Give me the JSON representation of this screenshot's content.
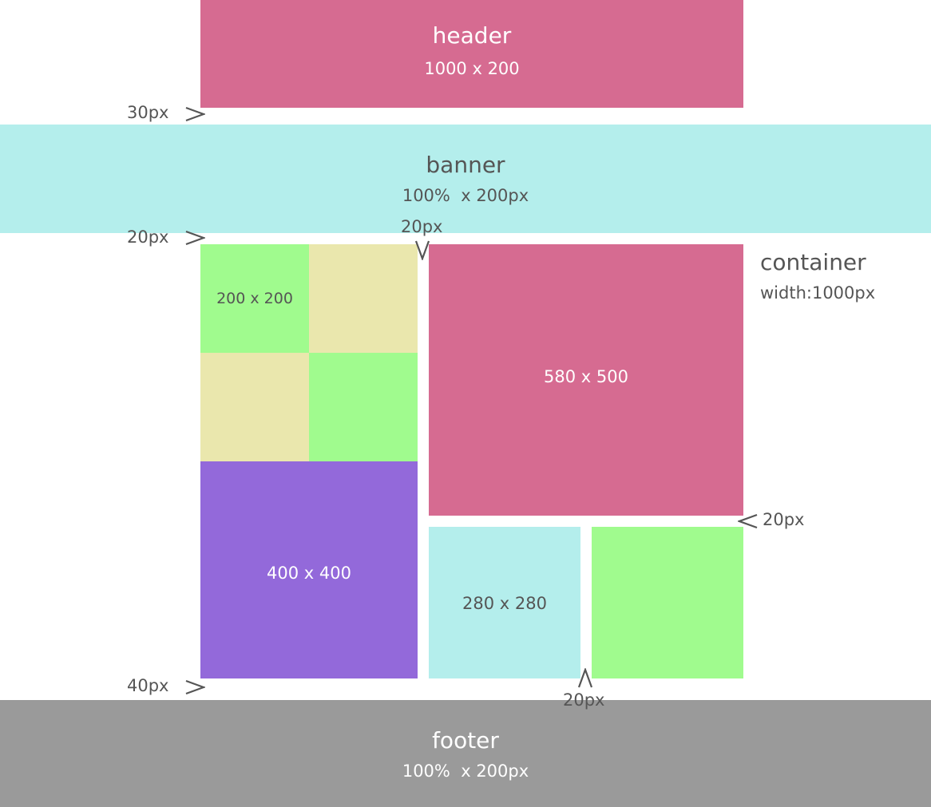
{
  "colors": {
    "pink": "#D66B91",
    "cyan": "#B4EEEC",
    "green": "#A0FB8E",
    "khaki": "#EAE7AD",
    "purple": "#9369DA",
    "gray": "#9A9A9A"
  },
  "header": {
    "title": "header",
    "size": "1000 x 200"
  },
  "banner": {
    "title": "banner",
    "size": "100%  x 200px"
  },
  "grid": {
    "small_box": "200 x 200",
    "purple_box": "400 x 400",
    "pink_box": "580 x 500",
    "cyan_box": "280 x 280"
  },
  "container_label": {
    "title": "container",
    "width": "width:1000px"
  },
  "spacings": {
    "header_gap": "30px",
    "banner_gap": "20px",
    "column_gap": "20px",
    "row_gap": "20px",
    "bottom_gap": "20px",
    "footer_gap": "40px"
  },
  "footer": {
    "title": "footer",
    "size": "100%  x 200px"
  }
}
